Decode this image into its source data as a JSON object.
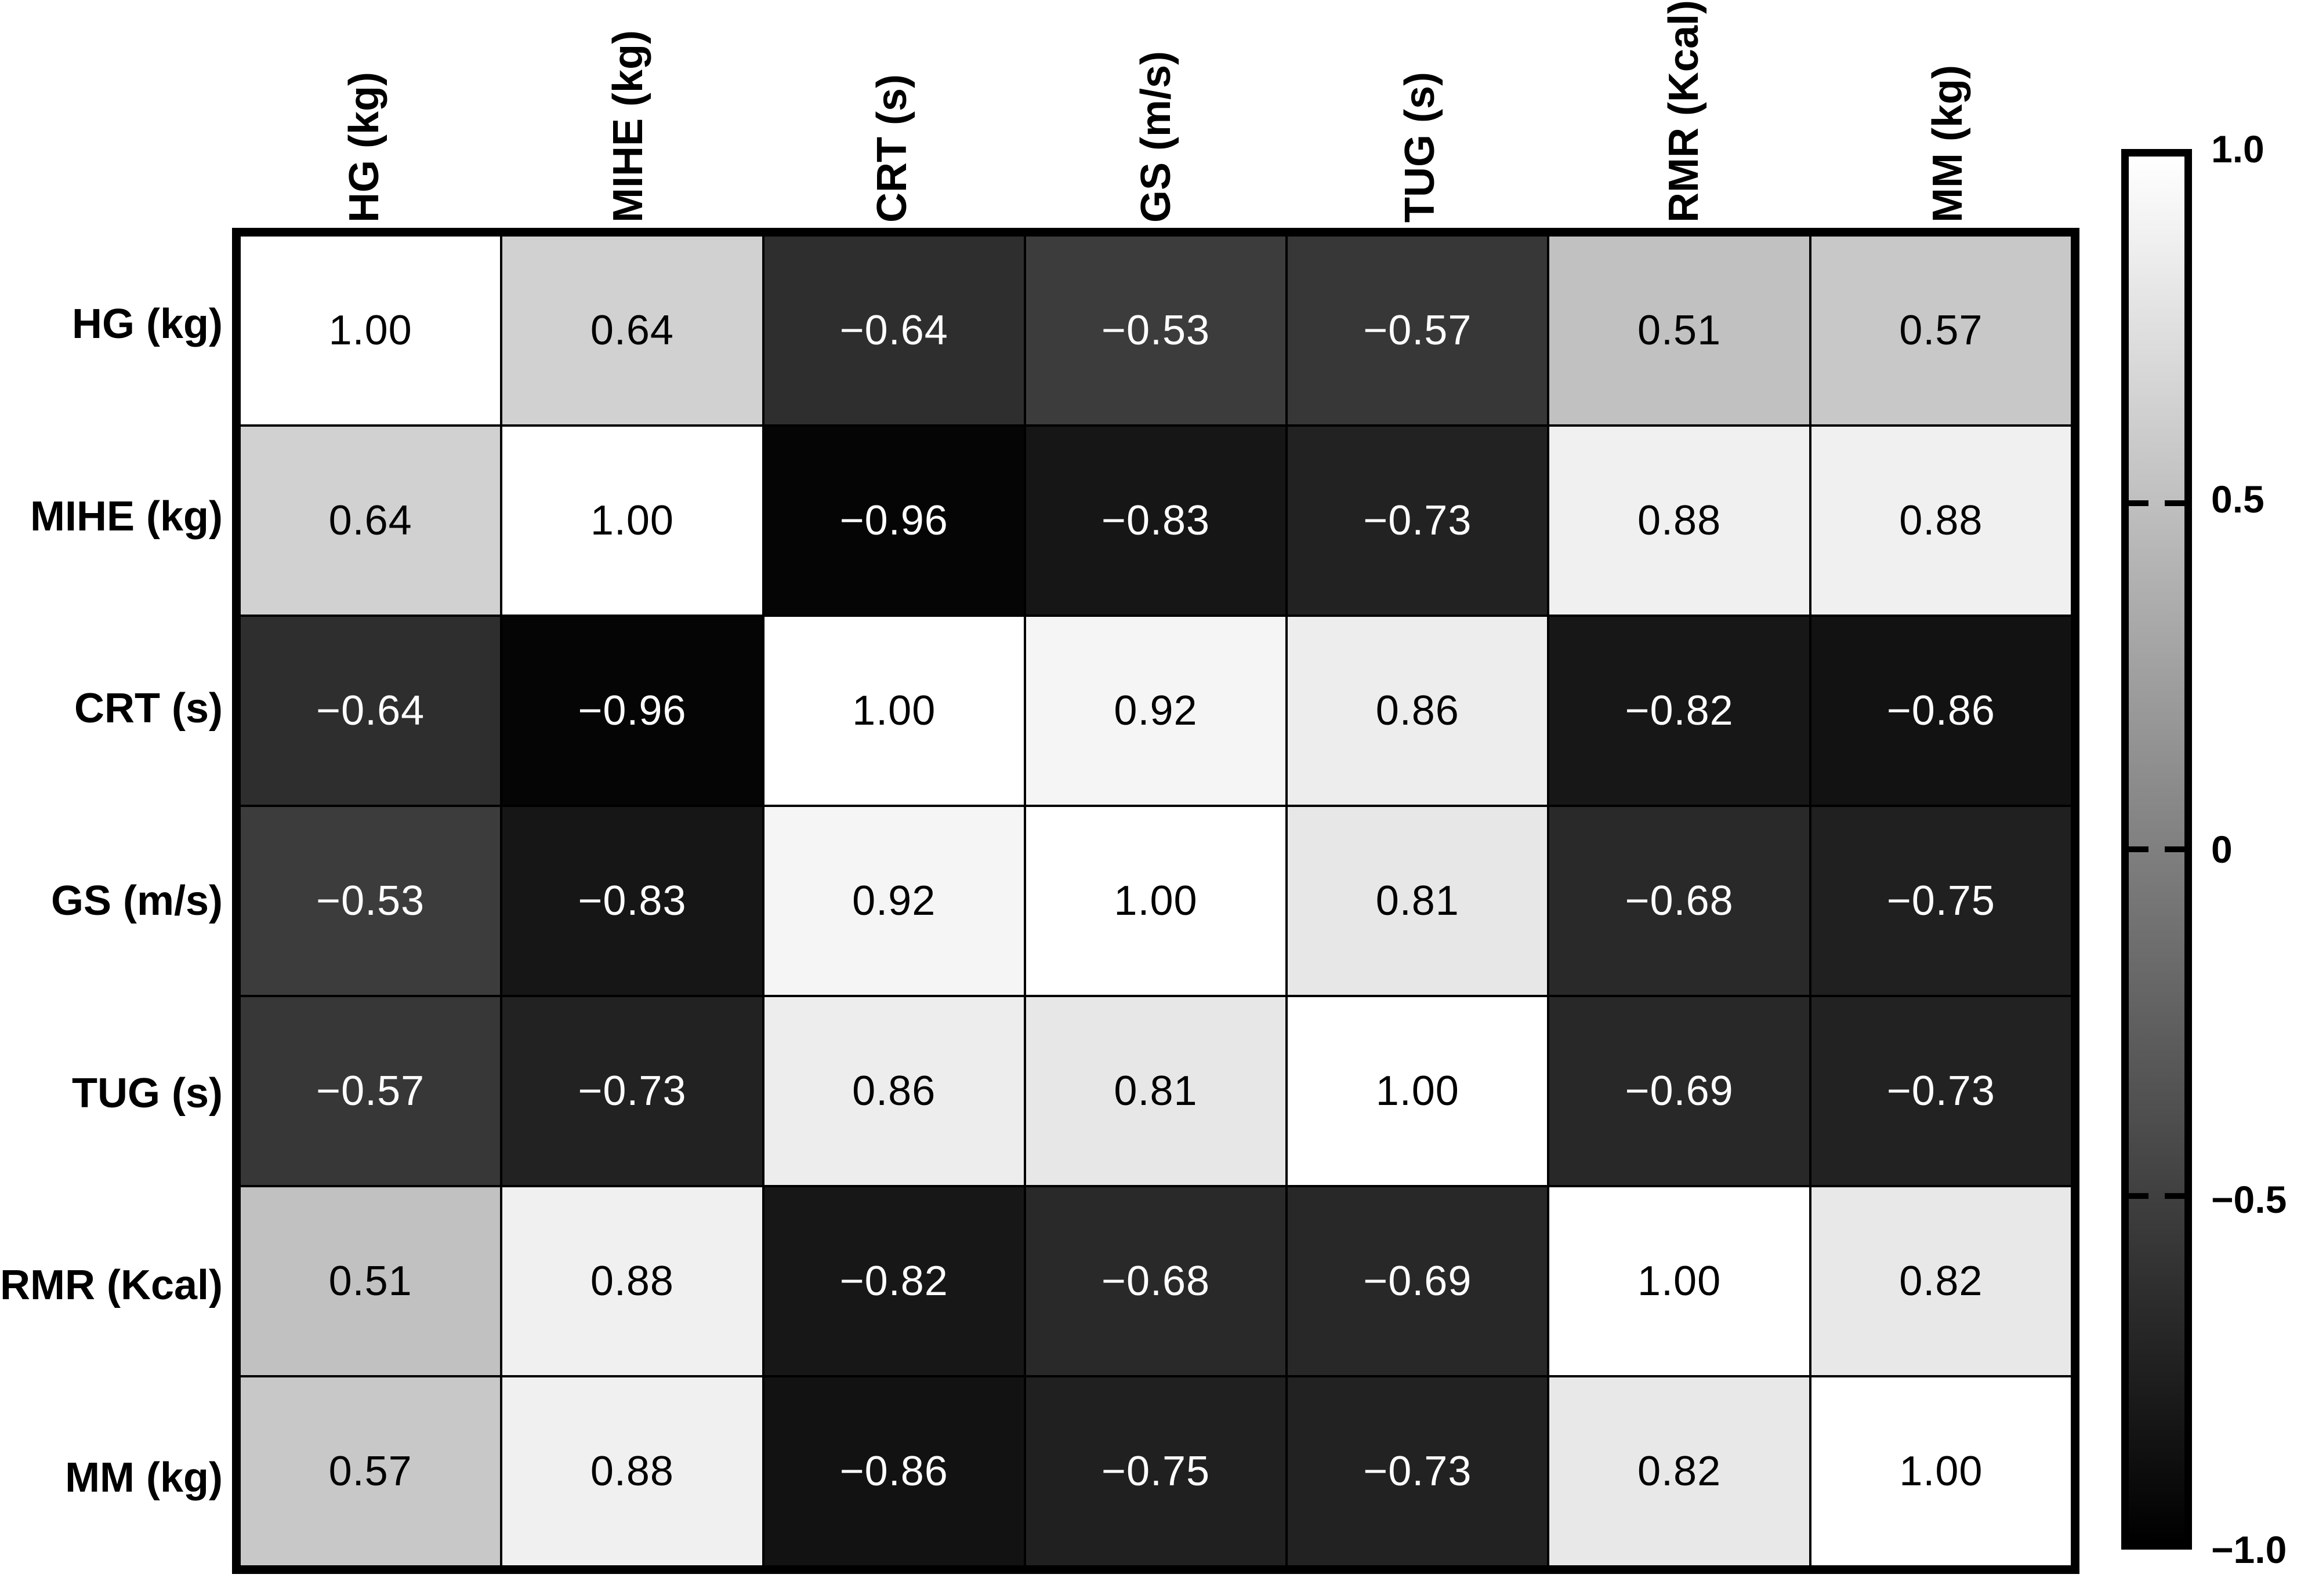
{
  "chart_data": {
    "type": "heatmap",
    "title": "",
    "description": "Correlation matrix heatmap, grayscale colormap (white = 1.0, black = -1.0), correlation coefficients printed in each cell",
    "row_labels": [
      "HG (kg)",
      "MIHE (kg)",
      "CRT (s)",
      "GS (m/s)",
      "TUG (s)",
      "RMR (Kcal)",
      "MM (kg)"
    ],
    "col_labels": [
      "HG (kg)",
      "MIHE (kg)",
      "CRT (s)",
      "GS (m/s)",
      "TUG (s)",
      "RMR (Kcal)",
      "MM (kg)"
    ],
    "matrix": [
      [
        1.0,
        0.64,
        -0.64,
        -0.53,
        -0.57,
        0.51,
        0.57
      ],
      [
        0.64,
        1.0,
        -0.96,
        -0.83,
        -0.73,
        0.88,
        0.88
      ],
      [
        -0.64,
        -0.96,
        1.0,
        0.92,
        0.86,
        -0.82,
        -0.86
      ],
      [
        -0.53,
        -0.83,
        0.92,
        1.0,
        0.81,
        -0.68,
        -0.75
      ],
      [
        -0.57,
        -0.73,
        0.86,
        0.81,
        1.0,
        -0.69,
        -0.73
      ],
      [
        0.51,
        0.88,
        -0.82,
        -0.68,
        -0.69,
        1.0,
        0.82
      ],
      [
        0.57,
        0.88,
        -0.86,
        -0.75,
        -0.73,
        0.82,
        1.0
      ]
    ],
    "value_format": "2 decimals, unicode minus sign",
    "grid": true,
    "colorbar": {
      "min": -1.0,
      "max": 1.0,
      "colormap_top_hex": "#ffffff",
      "colormap_bottom_hex": "#000000",
      "tick_values": [
        1.0,
        0.5,
        0,
        -0.5,
        -1.0
      ],
      "tick_labels": [
        "1.0",
        "0.5",
        "0",
        "−0.5",
        "−1.0"
      ],
      "inner_tick_values": [
        0.5,
        0,
        -0.5
      ],
      "position": "right"
    },
    "colors": {
      "border": "#000000",
      "background": "#ffffff",
      "positive_cell_text": "#000000",
      "negative_cell_text": "#ffffff"
    }
  }
}
